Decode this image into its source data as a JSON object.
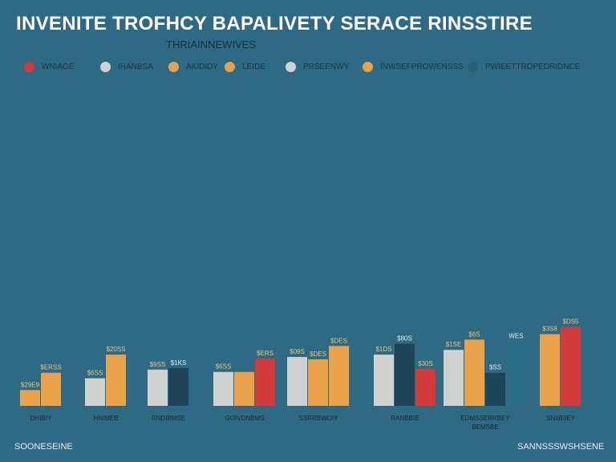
{
  "title": "INVENITE TROFHCY BAPALIVETY SERACE RINSSTIRE",
  "subtitle": "THRIAINNEWIVES",
  "legend": [
    {
      "label": "WNIAGE",
      "color": "#d23a3c"
    },
    {
      "label": "IHANBSA",
      "color": "#cfd2d0"
    },
    {
      "label": "AKIDIDY",
      "color": "#eaa24a"
    },
    {
      "label": "LEIDE",
      "color": "#eaa24a"
    },
    {
      "label": "PRSEENWY",
      "color": "#cfd2d0"
    },
    {
      "label": "INWSEFPROWENSSS",
      "color": "#eaa24a"
    },
    {
      "label": "PWIEETTROPEDRIDNCE",
      "color": "#2b5f78"
    }
  ],
  "footer": {
    "left": "SOONESEINE",
    "right": "SANNSSSWSHSENE"
  },
  "chart_data": {
    "type": "bar",
    "ylim": [
      0,
      230
    ],
    "grid": false,
    "groups": [
      {
        "label": "DHIBIY",
        "bars": [
          {
            "color": "#eaa24a",
            "value": 20,
            "label": "$29E9"
          },
          {
            "color": "#eaa24a",
            "value": 42,
            "label": "$ERSS"
          }
        ]
      },
      {
        "label": "HNIMEB",
        "bars": [
          {
            "color": "#cfd2d0",
            "value": 35,
            "label": "$6SS"
          },
          {
            "color": "#eaa24a",
            "value": 65,
            "label": "$20SS"
          }
        ]
      },
      {
        "label": "RNDIBMSE",
        "bars": [
          {
            "color": "#cfd2d0",
            "value": 46,
            "label": "$9SS"
          },
          {
            "color": "#1e4457",
            "value": 48,
            "label": "$1KS"
          }
        ]
      },
      {
        "label": "GOIVDNBMS",
        "bars": [
          {
            "color": "#cfd2d0",
            "value": 43,
            "label": "$6SS"
          },
          {
            "color": "#eaa24a",
            "value": 43,
            "label": ""
          },
          {
            "color": "#d23a3c",
            "value": 60,
            "label": "$ERS"
          }
        ]
      },
      {
        "label": "SSRRBWOIY",
        "bars": [
          {
            "color": "#cfd2d0",
            "value": 62,
            "label": "$09S"
          },
          {
            "color": "#eaa24a",
            "value": 59,
            "label": "$DES"
          },
          {
            "color": "#eaa24a",
            "value": 76,
            "label": "$DES"
          }
        ]
      },
      {
        "label": "RANBBIE",
        "bars": [
          {
            "color": "#cfd2d0",
            "value": 65,
            "label": "$1DS"
          },
          {
            "color": "#1e4457",
            "value": 79,
            "label": "$80S"
          },
          {
            "color": "#d23a3c",
            "value": 47,
            "label": "$30S"
          }
        ]
      },
      {
        "label": "EDMSSERRBEY",
        "sublabel": "BEMSBE",
        "bars": [
          {
            "color": "#cfd2d0",
            "value": 71,
            "label": "$1SE"
          },
          {
            "color": "#eaa24a",
            "value": 84,
            "label": "$6S"
          },
          {
            "color": "#1e4457",
            "value": 42,
            "label": "$SS"
          },
          {
            "color": "#2b6e86",
            "value": 82,
            "label": "WES"
          }
        ]
      },
      {
        "label": "SNIIBIIEY",
        "bars": [
          {
            "color": "#eaa24a",
            "value": 91,
            "label": "$3S8"
          },
          {
            "color": "#d23a3c",
            "value": 100,
            "label": "$DS5"
          }
        ]
      }
    ]
  }
}
